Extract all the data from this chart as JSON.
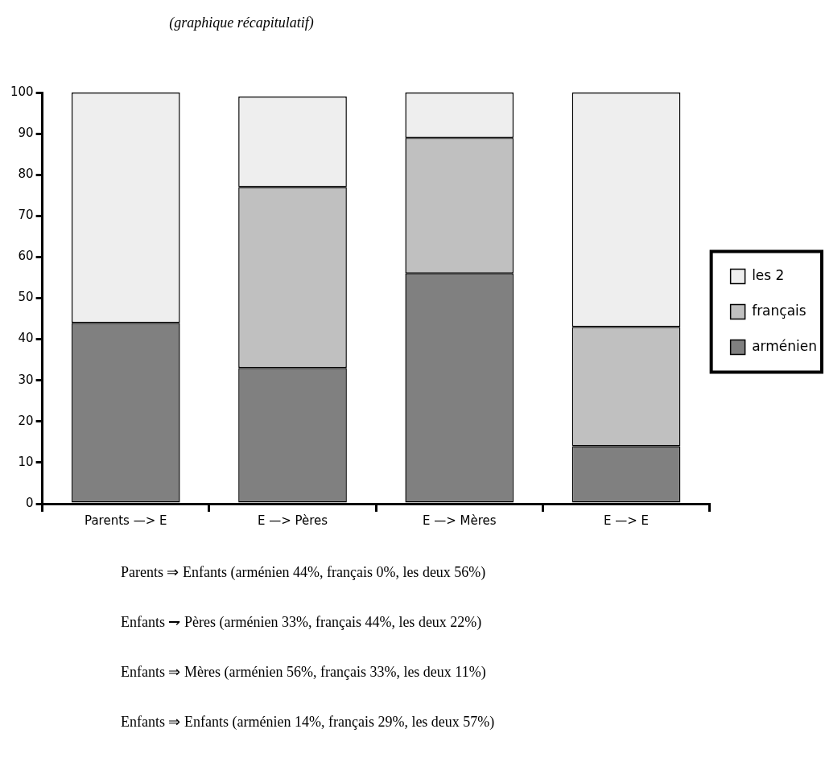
{
  "chart_data": {
    "type": "bar",
    "title": "(graphique récapitulatif)",
    "categories": [
      "Parents —> E",
      "E —> Pères",
      "E —> Mères",
      "E —> E"
    ],
    "stacked": true,
    "series": [
      {
        "name": "arménien",
        "color": "#808080",
        "values": [
          44,
          33,
          56,
          14
        ]
      },
      {
        "name": "français",
        "color": "#c0c0c0",
        "values": [
          0,
          44,
          33,
          29
        ]
      },
      {
        "name": "les 2",
        "color": "#eeeeee",
        "values": [
          56,
          22,
          11,
          57
        ]
      }
    ],
    "ylim": [
      0,
      100
    ],
    "yticks": [
      0,
      10,
      20,
      30,
      40,
      50,
      60,
      70,
      80,
      90,
      100
    ],
    "grid": false,
    "legend": "right",
    "annotations": [
      "Parents ⇒ Enfants (arménien 44%, français 0%, les deux 56%)",
      "Enfants ⇁ Pères (arménien 33%, français 44%, les deux 22%)",
      "Enfants ⇒ Mères (arménien 56%, français 33%, les deux 11%)",
      "Enfants ⇒ Enfants (arménien 14%, français 29%, les deux 57%)"
    ]
  }
}
